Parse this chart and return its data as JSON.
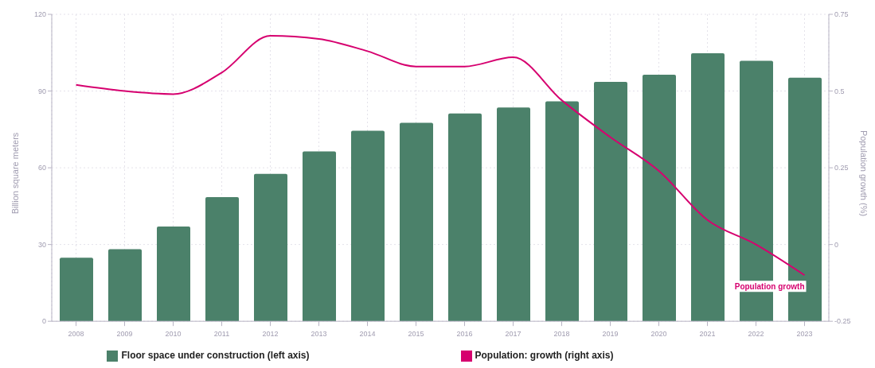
{
  "chart_data": {
    "type": "bar",
    "categories": [
      "2008",
      "2009",
      "2010",
      "2011",
      "2012",
      "2013",
      "2014",
      "2015",
      "2016",
      "2017",
      "2018",
      "2019",
      "2020",
      "2021",
      "2022",
      "2023"
    ],
    "series": [
      {
        "name": "Floor space under construction (left axis)",
        "color": "#4b816a",
        "values": [
          24.8,
          28.2,
          37,
          48.5,
          57.6,
          66.4,
          74.5,
          77.6,
          81.2,
          83.6,
          86,
          93.6,
          96.4,
          104.8,
          101.8,
          95.2
        ]
      },
      {
        "name": "Population: growth (right axis)",
        "type": "line",
        "axis": "y2",
        "color": "#d6006f",
        "values": [
          0.52,
          0.5,
          0.49,
          0.56,
          0.68,
          0.67,
          0.63,
          0.58,
          0.58,
          0.61,
          0.47,
          0.35,
          0.24,
          0.08,
          0.0,
          -0.1
        ]
      }
    ],
    "ylabel": "Billion square meters",
    "y2label": "Population growth (%)",
    "ylim": [
      0,
      120
    ],
    "yticks": [
      0,
      30,
      60,
      90,
      120
    ],
    "y2lim": [
      -0.25,
      0.75
    ],
    "y2ticks": [
      -0.25,
      0,
      0.25,
      0.5,
      0.75
    ],
    "annotations": [
      "Population growth"
    ],
    "grid": true,
    "legend": "bottom",
    "marker": "none",
    "line_style": "solid"
  }
}
